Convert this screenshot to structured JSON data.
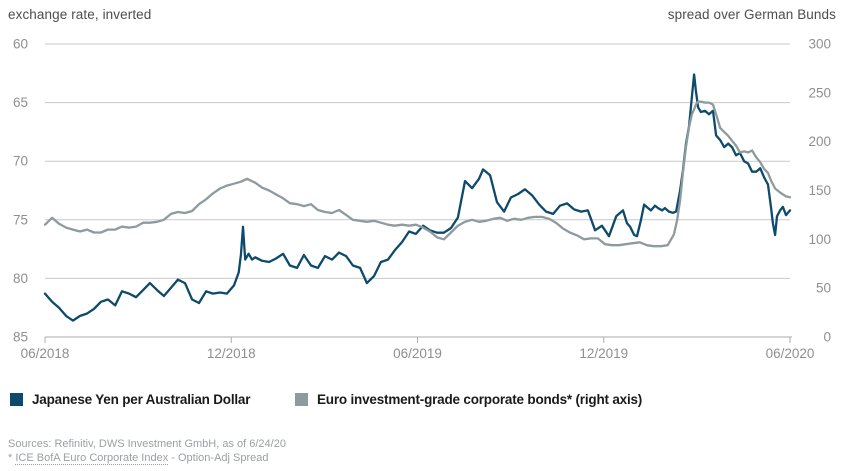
{
  "header": {
    "left_label": "exchange rate, inverted",
    "right_label": "spread over German Bunds"
  },
  "legend": {
    "items": [
      {
        "label": "Japanese Yen per Australian Dollar",
        "color": "#0e4a6b"
      },
      {
        "label": "Euro investment-grade corporate bonds* (right axis)",
        "color": "#8e9b9e"
      }
    ]
  },
  "footer": {
    "line1": "Sources: Refinitiv, DWS Investment GmbH, as of 6/24/20",
    "line2_prefix": "* ",
    "line2_link": "ICE BofA Euro Corporate Index",
    "line2_suffix": " - Option-Adj Spread"
  },
  "colors": {
    "grid": "#c9c9c9",
    "axis": "#ababab",
    "tick_label": "#8f8f8f",
    "title": "#4d4d4d"
  },
  "chart_data": {
    "type": "line",
    "title": "",
    "xlabel": "",
    "ylabel_left": "exchange rate, inverted",
    "ylabel_right": "spread over German Bunds",
    "grid": "horizontal",
    "legend_position": "bottom",
    "x_axis": {
      "tick_labels": [
        "06/2018",
        "12/2018",
        "06/2019",
        "12/2019",
        "06/2020"
      ],
      "range_months": [
        0,
        24
      ]
    },
    "left_axis": {
      "ticks": [
        60,
        65,
        70,
        75,
        80,
        85
      ],
      "inverted": true
    },
    "right_axis": {
      "ticks": [
        300,
        250,
        200,
        150,
        100,
        50,
        0
      ]
    },
    "series": [
      {
        "name": "Japanese Yen per Australian Dollar",
        "axis": "left",
        "color": "#0e4a6b",
        "points": [
          [
            0,
            81.3
          ],
          [
            0.23,
            82
          ],
          [
            0.45,
            82.5
          ],
          [
            0.68,
            83.2
          ],
          [
            0.9,
            83.6
          ],
          [
            1.13,
            83.2
          ],
          [
            1.35,
            83
          ],
          [
            1.58,
            82.6
          ],
          [
            1.8,
            82
          ],
          [
            2.03,
            81.8
          ],
          [
            2.26,
            82.3
          ],
          [
            2.48,
            81.1
          ],
          [
            2.71,
            81.3
          ],
          [
            2.93,
            81.6
          ],
          [
            3.16,
            81
          ],
          [
            3.38,
            80.4
          ],
          [
            3.61,
            81
          ],
          [
            3.83,
            81.5
          ],
          [
            4.06,
            80.8
          ],
          [
            4.28,
            80.1
          ],
          [
            4.51,
            80.4
          ],
          [
            4.74,
            81.8
          ],
          [
            4.96,
            82.1
          ],
          [
            5.19,
            81.1
          ],
          [
            5.41,
            81.3
          ],
          [
            5.64,
            81.2
          ],
          [
            5.86,
            81.3
          ],
          [
            6.09,
            80.6
          ],
          [
            6.24,
            79.5
          ],
          [
            6.31,
            78
          ],
          [
            6.38,
            75.6
          ],
          [
            6.45,
            78.4
          ],
          [
            6.56,
            77.9
          ],
          [
            6.67,
            78.4
          ],
          [
            6.77,
            78.2
          ],
          [
            6.99,
            78.5
          ],
          [
            7.22,
            78.6
          ],
          [
            7.44,
            78.3
          ],
          [
            7.67,
            77.9
          ],
          [
            7.89,
            78.9
          ],
          [
            8.12,
            79.1
          ],
          [
            8.34,
            78
          ],
          [
            8.57,
            78.9
          ],
          [
            8.79,
            79.1
          ],
          [
            9.02,
            78.1
          ],
          [
            9.25,
            78.4
          ],
          [
            9.47,
            77.8
          ],
          [
            9.7,
            78.1
          ],
          [
            9.92,
            78.9
          ],
          [
            10.15,
            79.1
          ],
          [
            10.37,
            80.4
          ],
          [
            10.6,
            79.8
          ],
          [
            10.82,
            78.6
          ],
          [
            11.05,
            78.4
          ],
          [
            11.27,
            77.6
          ],
          [
            11.5,
            76.9
          ],
          [
            11.73,
            76
          ],
          [
            11.95,
            76.2
          ],
          [
            12.18,
            75.5
          ],
          [
            12.4,
            75.9
          ],
          [
            12.63,
            76.1
          ],
          [
            12.85,
            76.1
          ],
          [
            13.08,
            75.7
          ],
          [
            13.3,
            74.8
          ],
          [
            13.53,
            71.7
          ],
          [
            13.76,
            72.3
          ],
          [
            13.98,
            71.5
          ],
          [
            14.11,
            70.7
          ],
          [
            14.34,
            71.2
          ],
          [
            14.56,
            73.5
          ],
          [
            14.79,
            74.3
          ],
          [
            15.01,
            73.1
          ],
          [
            15.24,
            72.8
          ],
          [
            15.46,
            72.4
          ],
          [
            15.69,
            72.9
          ],
          [
            15.92,
            73.7
          ],
          [
            16.14,
            74.3
          ],
          [
            16.37,
            74.5
          ],
          [
            16.59,
            73.8
          ],
          [
            16.82,
            73.6
          ],
          [
            17.04,
            74.1
          ],
          [
            17.27,
            74.3
          ],
          [
            17.49,
            74.2
          ],
          [
            17.72,
            75.9
          ],
          [
            17.94,
            75.5
          ],
          [
            18.17,
            76.4
          ],
          [
            18.4,
            74.7
          ],
          [
            18.62,
            74.2
          ],
          [
            18.75,
            75.3
          ],
          [
            18.85,
            75.6
          ],
          [
            18.98,
            76.3
          ],
          [
            19.07,
            76.4
          ],
          [
            19.2,
            75
          ],
          [
            19.3,
            73.7
          ],
          [
            19.43,
            74
          ],
          [
            19.52,
            74.2
          ],
          [
            19.65,
            73.8
          ],
          [
            19.75,
            74
          ],
          [
            19.88,
            74.2
          ],
          [
            19.97,
            74
          ],
          [
            20.1,
            74.3
          ],
          [
            20.23,
            74.4
          ],
          [
            20.33,
            74.3
          ],
          [
            20.46,
            72.5
          ],
          [
            20.55,
            70.8
          ],
          [
            20.65,
            68.5
          ],
          [
            20.75,
            67
          ],
          [
            20.84,
            64.5
          ],
          [
            20.91,
            62.6
          ],
          [
            20.97,
            64
          ],
          [
            21.04,
            65.4
          ],
          [
            21.13,
            65.8
          ],
          [
            21.26,
            65.7
          ],
          [
            21.39,
            66
          ],
          [
            21.52,
            65.7
          ],
          [
            21.62,
            67.8
          ],
          [
            21.75,
            68.2
          ],
          [
            21.88,
            68.8
          ],
          [
            22.01,
            68.5
          ],
          [
            22.13,
            68.8
          ],
          [
            22.26,
            69.5
          ],
          [
            22.39,
            69.3
          ],
          [
            22.52,
            70
          ],
          [
            22.65,
            70.2
          ],
          [
            22.78,
            70.9
          ],
          [
            22.91,
            70.9
          ],
          [
            23.04,
            70.6
          ],
          [
            23.17,
            71.4
          ],
          [
            23.29,
            72
          ],
          [
            23.39,
            74
          ],
          [
            23.45,
            75.3
          ],
          [
            23.52,
            76.3
          ],
          [
            23.58,
            74.7
          ],
          [
            23.68,
            74.2
          ],
          [
            23.77,
            73.9
          ],
          [
            23.87,
            74.6
          ],
          [
            24,
            74.2
          ]
        ]
      },
      {
        "name": "Euro investment-grade corporate bonds* (right axis)",
        "axis": "right",
        "color": "#8e9b9e",
        "points": [
          [
            0,
            115
          ],
          [
            0.23,
            122
          ],
          [
            0.45,
            116
          ],
          [
            0.68,
            112
          ],
          [
            0.9,
            110
          ],
          [
            1.13,
            108
          ],
          [
            1.35,
            110
          ],
          [
            1.58,
            107
          ],
          [
            1.8,
            107
          ],
          [
            2.03,
            110
          ],
          [
            2.26,
            110
          ],
          [
            2.48,
            113
          ],
          [
            2.71,
            112
          ],
          [
            2.93,
            113
          ],
          [
            3.16,
            117
          ],
          [
            3.38,
            117
          ],
          [
            3.61,
            118
          ],
          [
            3.83,
            120
          ],
          [
            4.06,
            126
          ],
          [
            4.28,
            128
          ],
          [
            4.51,
            127
          ],
          [
            4.74,
            129
          ],
          [
            4.96,
            136
          ],
          [
            5.19,
            141
          ],
          [
            5.41,
            147
          ],
          [
            5.64,
            152
          ],
          [
            5.86,
            155
          ],
          [
            6.09,
            157
          ],
          [
            6.31,
            159
          ],
          [
            6.51,
            162
          ],
          [
            6.77,
            158
          ],
          [
            6.99,
            153
          ],
          [
            7.22,
            150
          ],
          [
            7.44,
            146
          ],
          [
            7.67,
            142
          ],
          [
            7.89,
            137
          ],
          [
            8.12,
            136
          ],
          [
            8.34,
            134
          ],
          [
            8.57,
            136
          ],
          [
            8.79,
            130
          ],
          [
            9.02,
            128
          ],
          [
            9.25,
            127
          ],
          [
            9.47,
            130
          ],
          [
            9.7,
            125
          ],
          [
            9.92,
            120
          ],
          [
            10.15,
            119
          ],
          [
            10.37,
            118
          ],
          [
            10.6,
            119
          ],
          [
            10.82,
            117
          ],
          [
            11.05,
            115
          ],
          [
            11.27,
            114
          ],
          [
            11.5,
            115
          ],
          [
            11.73,
            114
          ],
          [
            11.95,
            115
          ],
          [
            12.18,
            112
          ],
          [
            12.4,
            108
          ],
          [
            12.63,
            102
          ],
          [
            12.85,
            100
          ],
          [
            13.08,
            107
          ],
          [
            13.3,
            114
          ],
          [
            13.53,
            118
          ],
          [
            13.76,
            120
          ],
          [
            13.98,
            118
          ],
          [
            14.21,
            119
          ],
          [
            14.44,
            121
          ],
          [
            14.66,
            122
          ],
          [
            14.89,
            119
          ],
          [
            15.11,
            121
          ],
          [
            15.34,
            120
          ],
          [
            15.56,
            122
          ],
          [
            15.79,
            123
          ],
          [
            16.01,
            123
          ],
          [
            16.24,
            121
          ],
          [
            16.46,
            117
          ],
          [
            16.69,
            111
          ],
          [
            16.91,
            107
          ],
          [
            17.14,
            104
          ],
          [
            17.36,
            100
          ],
          [
            17.59,
            101
          ],
          [
            17.81,
            101
          ],
          [
            18.04,
            95
          ],
          [
            18.26,
            94
          ],
          [
            18.49,
            94
          ],
          [
            18.71,
            95
          ],
          [
            18.94,
            96
          ],
          [
            19.16,
            97
          ],
          [
            19.39,
            94
          ],
          [
            19.61,
            93
          ],
          [
            19.84,
            93
          ],
          [
            20.06,
            94
          ],
          [
            20.26,
            105
          ],
          [
            20.36,
            119
          ],
          [
            20.46,
            140
          ],
          [
            20.55,
            168
          ],
          [
            20.65,
            195
          ],
          [
            20.75,
            215
          ],
          [
            20.84,
            228
          ],
          [
            20.91,
            233
          ],
          [
            20.97,
            238
          ],
          [
            21.04,
            241
          ],
          [
            21.13,
            241
          ],
          [
            21.26,
            240
          ],
          [
            21.39,
            240
          ],
          [
            21.52,
            238
          ],
          [
            21.62,
            228
          ],
          [
            21.75,
            214
          ],
          [
            21.88,
            210
          ],
          [
            22.01,
            206
          ],
          [
            22.13,
            201
          ],
          [
            22.26,
            196
          ],
          [
            22.39,
            189
          ],
          [
            22.52,
            190
          ],
          [
            22.65,
            189
          ],
          [
            22.78,
            191
          ],
          [
            22.91,
            184
          ],
          [
            23.04,
            179
          ],
          [
            23.17,
            172
          ],
          [
            23.29,
            168
          ],
          [
            23.39,
            160
          ],
          [
            23.52,
            152
          ],
          [
            23.68,
            148
          ],
          [
            23.77,
            146
          ],
          [
            23.87,
            144
          ],
          [
            24,
            143
          ]
        ]
      }
    ]
  }
}
